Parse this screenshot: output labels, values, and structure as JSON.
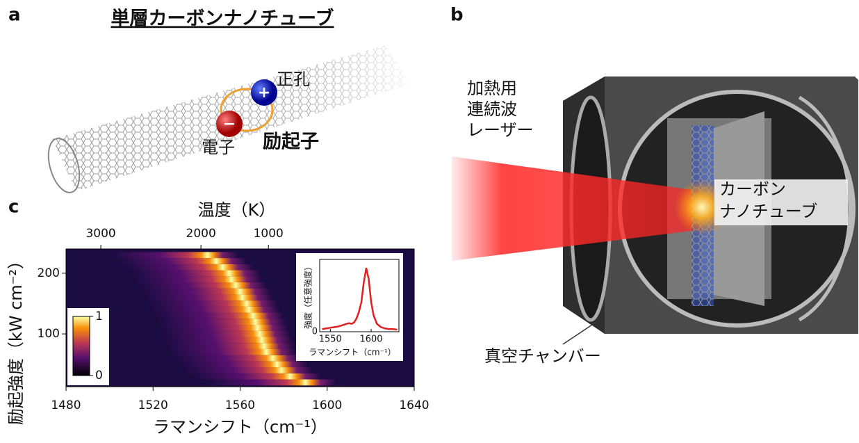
{
  "panel_a": {
    "label": "a",
    "title": "単層カーボンナノチューブ",
    "hole": "正孔",
    "electron": "電子",
    "exciton": "励起子"
  },
  "panel_b": {
    "label": "b",
    "laser": [
      "加熱用",
      "連続波",
      "レーザー"
    ],
    "nanotube": [
      "カーボン",
      "ナノチューブ"
    ],
    "chamber": "真空チャンバー"
  },
  "chart_data": {
    "type": "heatmap",
    "label": "c",
    "xlabel": "ラマンシフト（cm⁻¹）",
    "ylabel": "励起強度（kW cm⁻²）",
    "x2label": "温度（K）",
    "xlim": [
      1480,
      1640
    ],
    "xticks": [
      1480,
      1520,
      1560,
      1600,
      1640
    ],
    "ylim": [
      13,
      240
    ],
    "yticks": [
      100,
      200
    ],
    "x2ticks": [
      {
        "value": 1496,
        "label": "3000"
      },
      {
        "value": 1542,
        "label": "2000"
      },
      {
        "value": 1573,
        "label": "1000"
      }
    ],
    "power": [
      20,
      30,
      40,
      50,
      60,
      70,
      80,
      90,
      100,
      110,
      120,
      130,
      140,
      150,
      160,
      170,
      180,
      190,
      200,
      210,
      220,
      230
    ],
    "peak_shift": [
      1590,
      1583,
      1579,
      1577,
      1575,
      1572,
      1571,
      1570,
      1569,
      1568,
      1567,
      1566,
      1564,
      1563,
      1561,
      1560,
      1558,
      1556,
      1555,
      1552,
      1549,
      1545
    ],
    "colorbar": {
      "ticks": [
        0,
        1
      ]
    },
    "inset": {
      "xlabel": "ラマンシフト（cm⁻¹）",
      "ylabel": "強度（任意強度）",
      "color": "#e02020",
      "xlim": [
        1537,
        1634
      ],
      "xticks": [
        1550,
        1600
      ],
      "ylim": [
        0,
        1.1
      ],
      "yticks": [
        0
      ],
      "x": [
        1540,
        1545,
        1550,
        1555,
        1560,
        1565,
        1570,
        1573,
        1576,
        1579,
        1582,
        1585,
        1588,
        1591,
        1594,
        1597,
        1600,
        1603,
        1607,
        1612,
        1617,
        1622,
        1627,
        1632
      ],
      "values": [
        0.04,
        0.05,
        0.06,
        0.07,
        0.08,
        0.1,
        0.12,
        0.13,
        0.12,
        0.14,
        0.2,
        0.3,
        0.45,
        0.75,
        0.97,
        0.8,
        0.45,
        0.25,
        0.12,
        0.07,
        0.05,
        0.04,
        0.04,
        0.03
      ]
    }
  }
}
